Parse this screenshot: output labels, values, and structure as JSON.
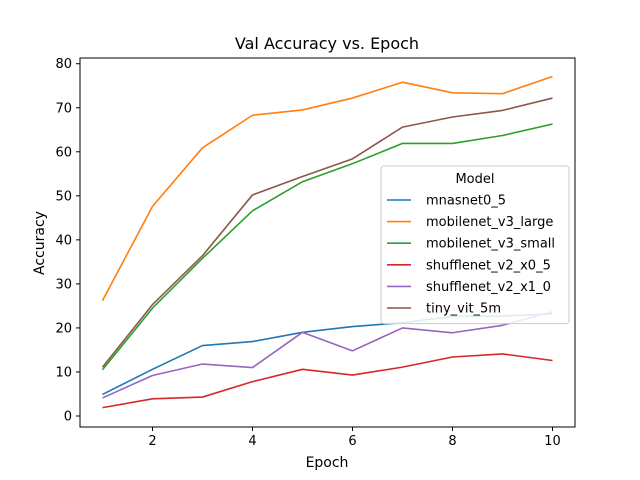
{
  "chart_data": {
    "type": "line",
    "title": "Val Accuracy vs. Epoch",
    "xlabel": "Epoch",
    "ylabel": "Accuracy",
    "x": [
      1,
      2,
      3,
      4,
      5,
      6,
      7,
      8,
      9,
      10
    ],
    "xlim": [
      0.55,
      10.45
    ],
    "ylim": [
      -2.5,
      81.3
    ],
    "xticks": [
      2,
      4,
      6,
      8,
      10
    ],
    "yticks": [
      0,
      10,
      20,
      30,
      40,
      50,
      60,
      70,
      80
    ],
    "grid": false,
    "legend": {
      "title": "Model",
      "placement": "center-right"
    },
    "series": [
      {
        "name": "mnasnet0_5",
        "color": "#1f77b4",
        "values": [
          4.9,
          10.6,
          16.0,
          16.9,
          19.0,
          20.3,
          21.2,
          22.6,
          22.7,
          23.2
        ]
      },
      {
        "name": "mobilenet_v3_large",
        "color": "#ff7f0e",
        "values": [
          26.2,
          47.6,
          60.9,
          68.3,
          69.5,
          72.2,
          75.8,
          73.4,
          73.2,
          77.1
        ]
      },
      {
        "name": "mobilenet_v3_small",
        "color": "#2ca02c",
        "values": [
          10.5,
          24.5,
          35.8,
          46.6,
          53.2,
          57.3,
          61.9,
          61.9,
          63.7,
          66.3
        ]
      },
      {
        "name": "shufflenet_v2_x0_5",
        "color": "#d62728",
        "values": [
          1.9,
          3.9,
          4.3,
          7.8,
          10.6,
          9.3,
          11.1,
          13.4,
          14.1,
          12.6
        ]
      },
      {
        "name": "shufflenet_v2_x1_0",
        "color": "#9467bd",
        "values": [
          4.1,
          9.2,
          11.8,
          11.0,
          19.0,
          14.8,
          20.0,
          18.9,
          20.6,
          23.7
        ]
      },
      {
        "name": "tiny_vit_5m",
        "color": "#8c564b",
        "values": [
          11.1,
          25.3,
          36.4,
          50.2,
          54.4,
          58.4,
          65.6,
          67.9,
          69.4,
          72.2
        ]
      }
    ]
  }
}
